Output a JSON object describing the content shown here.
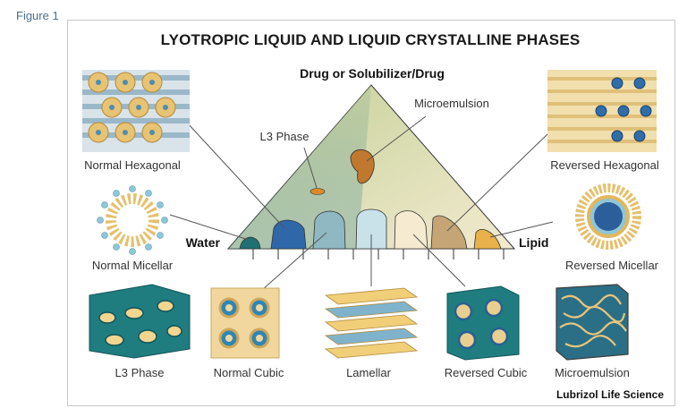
{
  "figure_label": "Figure 1",
  "title": "LYOTROPIC LIQUID AND LIQUID CRYSTALLINE PHASES",
  "apex_label": "Drug or Solubilizer/Drug",
  "left_label": "Water",
  "right_label": "Lipid",
  "inner_labels": {
    "l3_phase": "L3 Phase",
    "microemulsion": "Microemulsion"
  },
  "captions": {
    "normal_hexagonal": "Normal Hexagonal",
    "reversed_hexagonal": "Reversed Hexagonal",
    "normal_micellar": "Normal Micellar",
    "reversed_micellar": "Reversed Micellar",
    "l3_phase": "L3 Phase",
    "normal_cubic": "Normal Cubic",
    "lamellar": "Lamellar",
    "reversed_cubic": "Reversed Cubic",
    "microemulsion": "Microemulsion"
  },
  "credit": "Lubrizol Life Science",
  "colors": {
    "teal": "#1f7f86",
    "navy": "#2b4f8a",
    "cream": "#f0d9a0",
    "tan": "#b48a58",
    "orange": "#e2a43c",
    "light_blue": "#9cc9d9"
  }
}
